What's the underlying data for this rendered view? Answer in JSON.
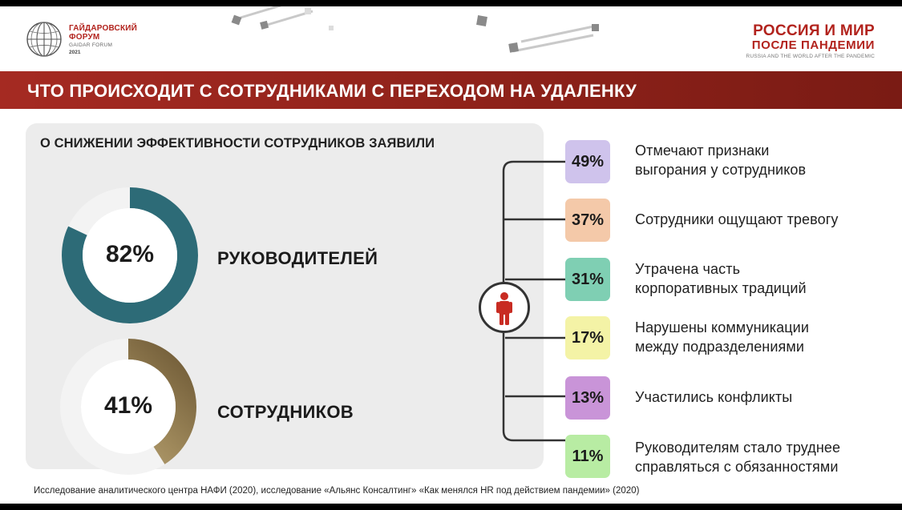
{
  "header": {
    "forum_name_line1": "ГАЙДАРОВСКИЙ",
    "forum_name_line2": "ФОРУМ",
    "forum_name_en": "GAIDAR FORUM",
    "forum_year": "2021",
    "event_title_line1": "РОССИЯ И МИР",
    "event_title_line2": "ПОСЛЕ ПАНДЕМИИ",
    "event_title_en": "RUSSIA AND THE WORLD AFTER THE PANDEMIC"
  },
  "banner": {
    "title": "ЧТО ПРОИСХОДИТ С СОТРУДНИКАМИ С ПЕРЕХОДОМ НА УДАЛЕНКУ"
  },
  "efficiency": {
    "heading": "О СНИЖЕНИИ ЭФФЕКТИВНОСТИ СОТРУДНИКОВ ЗАЯВИЛИ",
    "managers": {
      "value": 82,
      "value_label": "82%",
      "label": "РУКОВОДИТЕЛЕЙ",
      "color": "#2d6b77"
    },
    "employees": {
      "value": 41,
      "value_label": "41%",
      "label": "СОТРУДНИКОВ",
      "color": "#a08a5c"
    }
  },
  "items": [
    {
      "value_label": "49%",
      "line1": "Отмечают признаки",
      "line2": "выгорания у сотрудников",
      "color": "#cfc3ec"
    },
    {
      "value_label": "37%",
      "line1": "Сотрудники ощущают тревогу",
      "line2": "",
      "color": "#f4c9a9"
    },
    {
      "value_label": "31%",
      "line1": "Утрачена часть",
      "line2": "корпоративных традиций",
      "color": "#7fcfb3"
    },
    {
      "value_label": "17%",
      "line1": "Нарушены коммуникации",
      "line2": "между подразделениями",
      "color": "#f4f3a6"
    },
    {
      "value_label": "13%",
      "line1": "Участились конфликты",
      "line2": "",
      "color": "#c994d8"
    },
    {
      "value_label": "11%",
      "line1": "Руководителям стало труднее",
      "line2": "справляться с обязанностями",
      "color": "#b8eca3"
    }
  ],
  "icons": {
    "logo": "globe-logo-icon",
    "person": "person-icon"
  },
  "footnote": "Исследование аналитического центра НАФИ (2020), исследование «Альянс Консалтинг» «Как менялся HR под действием пандемии» (2020)"
}
